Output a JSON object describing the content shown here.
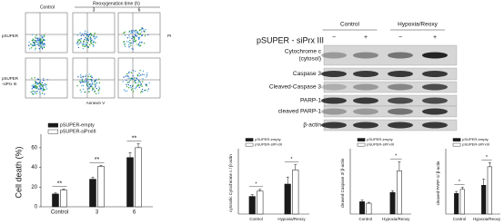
{
  "flow": {
    "control": "Control",
    "time_title": "Reoxygenation time (h)",
    "times": [
      "3",
      "6"
    ],
    "rows": [
      [
        "pSUPER"
      ],
      [
        "pSUPER",
        "-siPrx III"
      ]
    ],
    "y_axis": "PI",
    "x_axis": "Annexin V"
  },
  "blot": {
    "construct": "pSUPER - siPrx III",
    "groups": [
      "Control",
      "Hypoxia/Reoxy"
    ],
    "lanes": [
      "−",
      "+",
      "−",
      "+"
    ],
    "rows": [
      [
        "Cytochrome c",
        "(cytosol)"
      ],
      [
        "Caspase 3"
      ],
      [
        "Cleaved-Caspase 3"
      ],
      [
        "PARP-1"
      ],
      [
        "cleaved PARP-1"
      ],
      [
        "β-actin"
      ]
    ]
  },
  "chart_data": [
    {
      "type": "bar",
      "ylabel": "Cell death (%)",
      "categories": [
        "Control",
        "3",
        "6"
      ],
      "series": [
        {
          "name": "pSUPER-empty",
          "color": "#1a1a1a",
          "values": [
            13,
            28,
            50
          ],
          "errors": [
            1,
            2,
            5
          ]
        },
        {
          "name": "pSUPER-siPrxIII",
          "color": "#ffffff",
          "values": [
            17,
            41,
            60
          ],
          "errors": [
            1,
            1,
            4
          ]
        }
      ],
      "ylim": [
        0,
        70
      ],
      "yticks": [
        0,
        20,
        40,
        60
      ],
      "annotations": [
        "**",
        "**",
        "**"
      ]
    },
    {
      "type": "bar",
      "ylabel": "cytosolic Cytochrome c / β-actin",
      "categories": [
        "Control",
        "Hypoxia/Reoxy"
      ],
      "series": [
        {
          "name": "pSUPER-empty",
          "color": "#1a1a1a",
          "values": [
            1.0,
            1.7
          ],
          "errors": [
            0.1,
            0.4
          ]
        },
        {
          "name": "pSUPER-siPrxIII",
          "color": "#ffffff",
          "values": [
            1.3,
            2.5
          ],
          "errors": [
            0.1,
            0.3
          ]
        }
      ],
      "ylim": [
        0,
        3.5
      ],
      "annotations": [
        "*",
        "*"
      ]
    },
    {
      "type": "bar",
      "ylabel": "cleaved Caspase 3/ β-actin",
      "categories": [
        "Control",
        "Hypoxia/Reoxy"
      ],
      "series": [
        {
          "name": "pSUPER-empty",
          "color": "#1a1a1a",
          "values": [
            0.4,
            0.7
          ],
          "errors": [
            0.05,
            0.05
          ]
        },
        {
          "name": "pSUPER-siPrxIII",
          "color": "#ffffff",
          "values": [
            0.35,
            1.4
          ],
          "errors": [
            0.03,
            0.3
          ]
        }
      ],
      "ylim": [
        0,
        2
      ],
      "annotations": [
        null,
        "*"
      ]
    },
    {
      "type": "bar",
      "ylabel": "cleaved PARP-1/ β-actin",
      "categories": [
        "Control",
        "Hypoxia/Reoxy"
      ],
      "series": [
        {
          "name": "pSUPER-empty",
          "color": "#1a1a1a",
          "values": [
            1.0,
            1.4
          ],
          "errors": [
            0.1,
            0.3
          ]
        },
        {
          "name": "pSUPER-siPrxIII",
          "color": "#ffffff",
          "values": [
            1.2,
            2.3
          ],
          "errors": [
            0.1,
            0.2
          ]
        }
      ],
      "ylim": [
        0,
        3
      ],
      "annotations": [
        "*",
        "*"
      ]
    }
  ]
}
